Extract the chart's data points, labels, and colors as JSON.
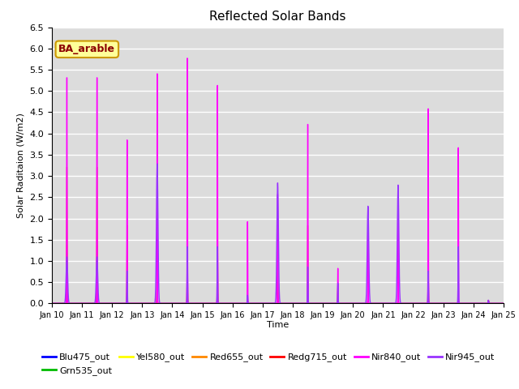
{
  "title": "Reflected Solar Bands",
  "xlabel": "Time",
  "ylabel": "Solar Raditaion (W/m2)",
  "ylim": [
    0,
    6.5
  ],
  "yticks": [
    0.0,
    0.5,
    1.0,
    1.5,
    2.0,
    2.5,
    3.0,
    3.5,
    4.0,
    4.5,
    5.0,
    5.5,
    6.0,
    6.5
  ],
  "xtick_labels": [
    "Jan 10",
    "Jan 11",
    "Jan 12",
    "Jan 13",
    "Jan 14",
    "Jan 15",
    "Jan 16",
    "Jan 17",
    "Jan 18",
    "Jan 19",
    "Jan 20",
    "Jan 21",
    "Jan 22",
    "Jan 23",
    "Jan 24",
    "Jan 25"
  ],
  "annotation_text": "BA_arable",
  "annotation_color": "#8B0000",
  "annotation_bg": "#FFFF99",
  "background_color": "#DCDCDC",
  "grid_color": "#FFFFFF",
  "series": [
    {
      "label": "Blu475_out",
      "color": "#0000FF",
      "lw": 0.8
    },
    {
      "label": "Grn535_out",
      "color": "#00BB00",
      "lw": 0.8
    },
    {
      "label": "Yel580_out",
      "color": "#FFFF00",
      "lw": 0.8
    },
    {
      "label": "Red655_out",
      "color": "#FF8800",
      "lw": 0.8
    },
    {
      "label": "Redg715_out",
      "color": "#FF0000",
      "lw": 0.8
    },
    {
      "label": "Nir840_out",
      "color": "#FF00FF",
      "lw": 1.0
    },
    {
      "label": "Nir945_out",
      "color": "#9933FF",
      "lw": 1.0
    }
  ],
  "day_peaks": [
    {
      "blu": 0.08,
      "grn": 0.9,
      "yel": 0.9,
      "red": 1.5,
      "redg": 3.5,
      "nir840": 5.8,
      "nir945": 1.1,
      "nir945_wide": true
    },
    {
      "blu": 0.08,
      "grn": 0.9,
      "yel": 0.9,
      "red": 1.5,
      "redg": 3.5,
      "nir840": 5.8,
      "nir945": 1.1,
      "nir945_wide": true
    },
    {
      "blu": 0.08,
      "grn": 0.4,
      "yel": 0.4,
      "red": 0.7,
      "redg": 2.0,
      "nir840": 4.2,
      "nir945": 0.8,
      "nir945_wide": false
    },
    {
      "blu": 0.08,
      "grn": 0.5,
      "yel": 1.5,
      "red": 1.5,
      "redg": 3.0,
      "nir840": 5.9,
      "nir945": 3.3,
      "nir945_wide": true
    },
    {
      "blu": 0.08,
      "grn": 0.2,
      "yel": 1.7,
      "red": 1.7,
      "redg": 3.8,
      "nir840": 6.3,
      "nir945": 1.4,
      "nir945_wide": false
    },
    {
      "blu": 0.08,
      "grn": 0.5,
      "yel": 0.5,
      "red": 2.0,
      "redg": 3.5,
      "nir840": 5.6,
      "nir945": 1.4,
      "nir945_wide": false
    },
    {
      "blu": 0.08,
      "grn": 0.08,
      "yel": 0.08,
      "red": 0.08,
      "redg": 0.08,
      "nir840": 2.1,
      "nir945": 0.2,
      "nir945_wide": false
    },
    {
      "blu": 0.08,
      "grn": 0.08,
      "yel": 0.08,
      "red": 0.5,
      "redg": 1.6,
      "nir840": 2.8,
      "nir945": 2.85,
      "nir945_wide": true
    },
    {
      "blu": 0.08,
      "grn": 0.08,
      "yel": 0.08,
      "red": 0.5,
      "redg": 2.0,
      "nir840": 4.6,
      "nir945": 0.9,
      "nir945_wide": false
    },
    {
      "blu": 0.08,
      "grn": 0.08,
      "yel": 0.08,
      "red": 0.4,
      "redg": 0.5,
      "nir840": 0.9,
      "nir945": 0.5,
      "nir945_wide": false
    },
    {
      "blu": 0.08,
      "grn": 0.08,
      "yel": 0.08,
      "red": 0.08,
      "redg": 0.08,
      "nir840": 2.1,
      "nir945": 2.3,
      "nir945_wide": true
    },
    {
      "blu": 0.08,
      "grn": 0.08,
      "yel": 0.08,
      "red": 0.08,
      "redg": 0.08,
      "nir840": 2.8,
      "nir945": 2.8,
      "nir945_wide": true
    },
    {
      "blu": 0.08,
      "grn": 0.3,
      "yel": 0.8,
      "red": 1.5,
      "redg": 3.0,
      "nir840": 5.0,
      "nir945": 0.8,
      "nir945_wide": false
    },
    {
      "blu": 0.1,
      "grn": 0.08,
      "yel": 0.08,
      "red": 0.08,
      "redg": 0.08,
      "nir840": 4.0,
      "nir945": 1.4,
      "nir945_wide": false
    },
    {
      "blu": 0.08,
      "grn": 0.08,
      "yel": 0.08,
      "red": 0.08,
      "redg": 0.08,
      "nir840": 0.08,
      "nir945": 0.08,
      "nir945_wide": false
    }
  ]
}
